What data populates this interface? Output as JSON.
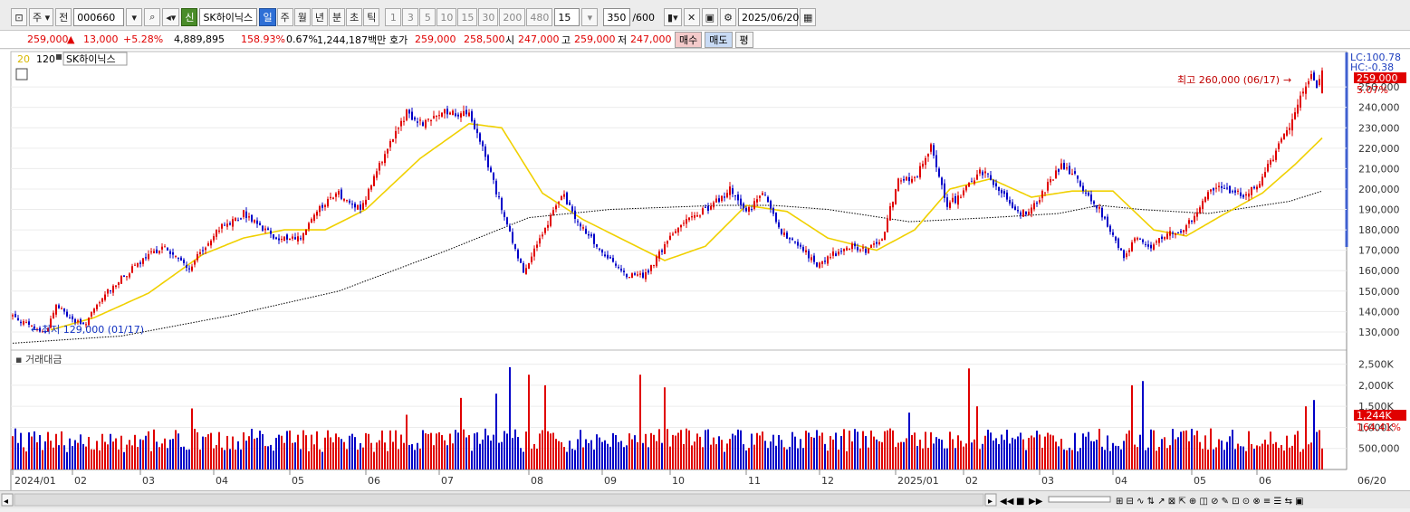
{
  "toolbar": {
    "period_label": "주",
    "prev_label": "전",
    "code": "000660",
    "stock_name": "SK하이닉스",
    "credit_label": "신",
    "period_tabs": [
      {
        "label": "일",
        "selected": true
      },
      {
        "label": "주",
        "selected": false
      },
      {
        "label": "월",
        "selected": false
      },
      {
        "label": "년",
        "selected": false
      },
      {
        "label": "분",
        "selected": false
      },
      {
        "label": "초",
        "selected": false
      },
      {
        "label": "틱",
        "selected": false
      }
    ],
    "intervals": [
      "1",
      "3",
      "5",
      "10",
      "15",
      "30",
      "200",
      "480"
    ],
    "interval_value": "15",
    "count_value": "350",
    "count_total": "/600",
    "date": "2025/06/20"
  },
  "quote": {
    "price": "259,000",
    "arrow": "▲",
    "change": "13,000",
    "change_pct": "+5.28%",
    "volume": "4,889,895",
    "volume_ratio": "158.93%",
    "turnover_pct": "0.67%",
    "amount": "1,244,187백만",
    "bid_label": "호가",
    "ask_price": "259,000",
    "bid_price": "258,500",
    "open_label": "시",
    "open": "247,000",
    "high_label": "고",
    "high": "259,000",
    "low_label": "저",
    "low": "247,000",
    "buy_label": "매수",
    "sell_label": "매도",
    "avg_label": "평"
  },
  "legend": {
    "ma20": "20",
    "ma120": "120",
    "name": "SK하이닉스"
  },
  "volume_title": "거래대금",
  "right_labels": {
    "lc": "LC:100.78",
    "hc": "HC:-0.38",
    "last_price": "259,000",
    "last_pct": "5.07%",
    "last_amount": "1,244K",
    "amount_pct": "164.41%"
  },
  "annotations": {
    "high": "최고 260,000 (06/17)",
    "low": "최저 129,000 (01/17)"
  },
  "colors": {
    "up": "#e00000",
    "down": "#0000c8",
    "ma20": "#f0d000",
    "ma120": "#000000",
    "selected_tab": "#2e6fd6"
  },
  "chart_data": {
    "type": "candlestick",
    "x_ticks": [
      "2024/01",
      "02",
      "03",
      "04",
      "05",
      "06",
      "07",
      "08",
      "09",
      "10",
      "11",
      "12",
      "2025/01",
      "02",
      "03",
      "04",
      "05",
      "06",
      "06/20"
    ],
    "price_ticks": [
      "130,000",
      "140,000",
      "150,000",
      "160,000",
      "170,000",
      "180,000",
      "190,000",
      "200,000",
      "210,000",
      "220,000",
      "230,000",
      "240,000",
      "250,000"
    ],
    "volume_ticks": [
      "500,000",
      "1,000,000",
      "1,500,000",
      "2,000,000",
      "2,500,000"
    ],
    "volume_tick_labels": [
      "500,000",
      "1,000K",
      "1,500K",
      "2,000K",
      "2,500K"
    ],
    "price_range": [
      122000,
      266000
    ],
    "volume_range": [
      0,
      2750000
    ],
    "close_anchors": [
      [
        0,
        138000
      ],
      [
        6,
        133000
      ],
      [
        12,
        129500
      ],
      [
        16,
        143000
      ],
      [
        22,
        136000
      ],
      [
        26,
        133000
      ],
      [
        35,
        150000
      ],
      [
        45,
        162000
      ],
      [
        55,
        172000
      ],
      [
        65,
        161000
      ],
      [
        75,
        180000
      ],
      [
        85,
        188000
      ],
      [
        92,
        180000
      ],
      [
        98,
        176000
      ],
      [
        106,
        176000
      ],
      [
        112,
        190000
      ],
      [
        120,
        198000
      ],
      [
        128,
        190000
      ],
      [
        135,
        212000
      ],
      [
        145,
        237000
      ],
      [
        152,
        232000
      ],
      [
        160,
        238000
      ],
      [
        168,
        236000
      ],
      [
        173,
        220000
      ],
      [
        180,
        190000
      ],
      [
        185,
        170000
      ],
      [
        188,
        160000
      ],
      [
        195,
        178000
      ],
      [
        202,
        198000
      ],
      [
        210,
        180000
      ],
      [
        218,
        168000
      ],
      [
        226,
        158000
      ],
      [
        233,
        158000
      ],
      [
        240,
        172000
      ],
      [
        248,
        186000
      ],
      [
        256,
        190000
      ],
      [
        264,
        200000
      ],
      [
        270,
        188000
      ],
      [
        276,
        198000
      ],
      [
        283,
        178000
      ],
      [
        290,
        172000
      ],
      [
        296,
        162000
      ],
      [
        302,
        168000
      ],
      [
        308,
        172000
      ],
      [
        314,
        170000
      ],
      [
        320,
        175000
      ],
      [
        326,
        205000
      ],
      [
        332,
        205000
      ],
      [
        338,
        220000
      ],
      [
        344,
        192000
      ],
      [
        350,
        198000
      ],
      [
        356,
        210000
      ],
      [
        362,
        202000
      ],
      [
        368,
        190000
      ],
      [
        374,
        188000
      ],
      [
        380,
        200000
      ],
      [
        386,
        212000
      ],
      [
        392,
        205000
      ],
      [
        396,
        196000
      ],
      [
        400,
        190000
      ],
      [
        405,
        178000
      ],
      [
        409,
        166000
      ],
      [
        413,
        176000
      ],
      [
        419,
        172000
      ],
      [
        425,
        178000
      ],
      [
        431,
        180000
      ],
      [
        436,
        188000
      ],
      [
        441,
        200000
      ],
      [
        447,
        200000
      ],
      [
        453,
        197000
      ],
      [
        458,
        202000
      ],
      [
        464,
        215000
      ],
      [
        470,
        232000
      ],
      [
        474,
        245000
      ],
      [
        478,
        254000
      ],
      [
        480,
        250000
      ],
      [
        482,
        259000
      ]
    ],
    "ma20_anchors": [
      [
        14,
        131000
      ],
      [
        30,
        137000
      ],
      [
        50,
        149000
      ],
      [
        70,
        168000
      ],
      [
        85,
        176000
      ],
      [
        100,
        180000
      ],
      [
        115,
        180000
      ],
      [
        130,
        190000
      ],
      [
        150,
        215000
      ],
      [
        168,
        232000
      ],
      [
        180,
        230000
      ],
      [
        195,
        198000
      ],
      [
        210,
        185000
      ],
      [
        225,
        175000
      ],
      [
        240,
        165000
      ],
      [
        255,
        172000
      ],
      [
        270,
        192000
      ],
      [
        285,
        189000
      ],
      [
        300,
        176000
      ],
      [
        318,
        170000
      ],
      [
        332,
        180000
      ],
      [
        345,
        200000
      ],
      [
        360,
        205000
      ],
      [
        375,
        196000
      ],
      [
        390,
        199000
      ],
      [
        405,
        199000
      ],
      [
        420,
        180000
      ],
      [
        432,
        177000
      ],
      [
        445,
        187000
      ],
      [
        460,
        198000
      ],
      [
        472,
        212000
      ],
      [
        482,
        225000
      ]
    ],
    "ma120_anchors": [
      [
        0,
        124500
      ],
      [
        40,
        128000
      ],
      [
        80,
        138000
      ],
      [
        120,
        150000
      ],
      [
        160,
        170000
      ],
      [
        190,
        186000
      ],
      [
        220,
        190000
      ],
      [
        260,
        192000
      ],
      [
        280,
        192000
      ],
      [
        300,
        190000
      ],
      [
        330,
        184000
      ],
      [
        360,
        186000
      ],
      [
        385,
        188000
      ],
      [
        400,
        192000
      ],
      [
        415,
        190000
      ],
      [
        440,
        188000
      ],
      [
        470,
        194000
      ],
      [
        482,
        199000
      ]
    ],
    "volume_spikes": [
      [
        66,
        1450000
      ],
      [
        145,
        1300000
      ],
      [
        165,
        1700000
      ],
      [
        178,
        1800000
      ],
      [
        183,
        2430000
      ],
      [
        190,
        2250000
      ],
      [
        196,
        2000000
      ],
      [
        231,
        2250000
      ],
      [
        240,
        1950000
      ],
      [
        330,
        1350000
      ],
      [
        352,
        2400000
      ],
      [
        355,
        1500000
      ],
      [
        412,
        2000000
      ],
      [
        416,
        2100000
      ],
      [
        476,
        1500000
      ],
      [
        479,
        1650000
      ]
    ],
    "volume_base": 750000,
    "volume_series": "거래대금",
    "high_annotation": {
      "index": 476,
      "value": 260000,
      "date": "06/17"
    },
    "low_annotation": {
      "index": 9,
      "value": 129000,
      "date": "01/17"
    }
  }
}
